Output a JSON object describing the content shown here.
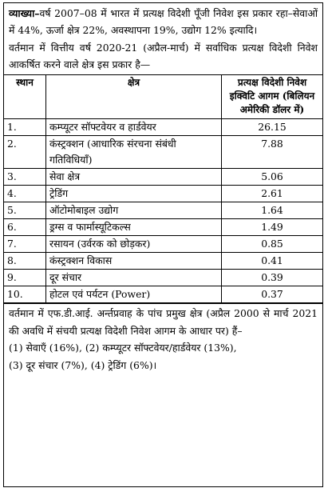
{
  "intro": {
    "label": "व्याख्या–",
    "para1": "वर्ष 2007–08 में भारत में प्रत्यक्ष विदेशी पूँजी निवेश इस प्रकार रहा–सेवाओं में 44%, ऊर्जा क्षेत्र 22%, अवस्थापना 19%, उद्योग 12% इत्यादि।",
    "para2": "वर्तमान में वित्तीय वर्ष 2020-21 (अप्रैल-मार्च) में सर्वाधिक प्रत्यक्ष विदेशी निवेश आकर्षित करने वाले क्षेत्र इस प्रकार है—"
  },
  "table": {
    "headers": {
      "rank": "स्थान",
      "sector": "क्षेत्र",
      "value": "प्रत्यक्ष विदेशी निवेश इक्विटि आगम (बिलियन अमेरिकी डॉलर में)"
    },
    "rows": [
      {
        "rank": "1.",
        "sector": "कम्प्यूटर सॉफ्टवेयर व हार्डवेयर",
        "value": "26.15"
      },
      {
        "rank": "2.",
        "sector": "कंस्ट्रक्शन (आधारिक संरचना संबंधी गतिविधियाँ)",
        "value": "7.88"
      },
      {
        "rank": "3.",
        "sector": "सेवा क्षेत्र",
        "value": "5.06"
      },
      {
        "rank": "4.",
        "sector": "ट्रेडिंग",
        "value": "2.61"
      },
      {
        "rank": "5.",
        "sector": "ऑटोमोबाइल उद्योग",
        "value": "1.64"
      },
      {
        "rank": "6.",
        "sector": "ड्रग्स व फार्मास्यूटिकल्स",
        "value": "1.49"
      },
      {
        "rank": "7.",
        "sector": "रसायन (उर्वरक को छोड़कर)",
        "value": "0.85"
      },
      {
        "rank": "8.",
        "sector": "कंस्ट्रक्शन विकास",
        "value": "0.41"
      },
      {
        "rank": "9.",
        "sector": "दूर संचार",
        "value": "0.39"
      },
      {
        "rank": "10.",
        "sector": "होटल एवं पर्यटन (Power)",
        "value": "0.37"
      }
    ]
  },
  "footer": {
    "para1": "वर्तमान में एफ.डी.आई. अर्न्तप्रवाह के पांच प्रमुख क्षेत्र (अप्रैल 2000 से मार्च 2021 की अवधि में संचयी प्रत्यक्ष विदेशी निवेश आगम के आधार पर) हैं–",
    "line1": "(1) सेवाएँ (16%), (2) कम्प्यूटर सॉफ्टवेयर/हार्डवेयर (13%),",
    "line2": "(3) दूर संचार (7%), (4) ट्रेडिंग (6%)।"
  }
}
